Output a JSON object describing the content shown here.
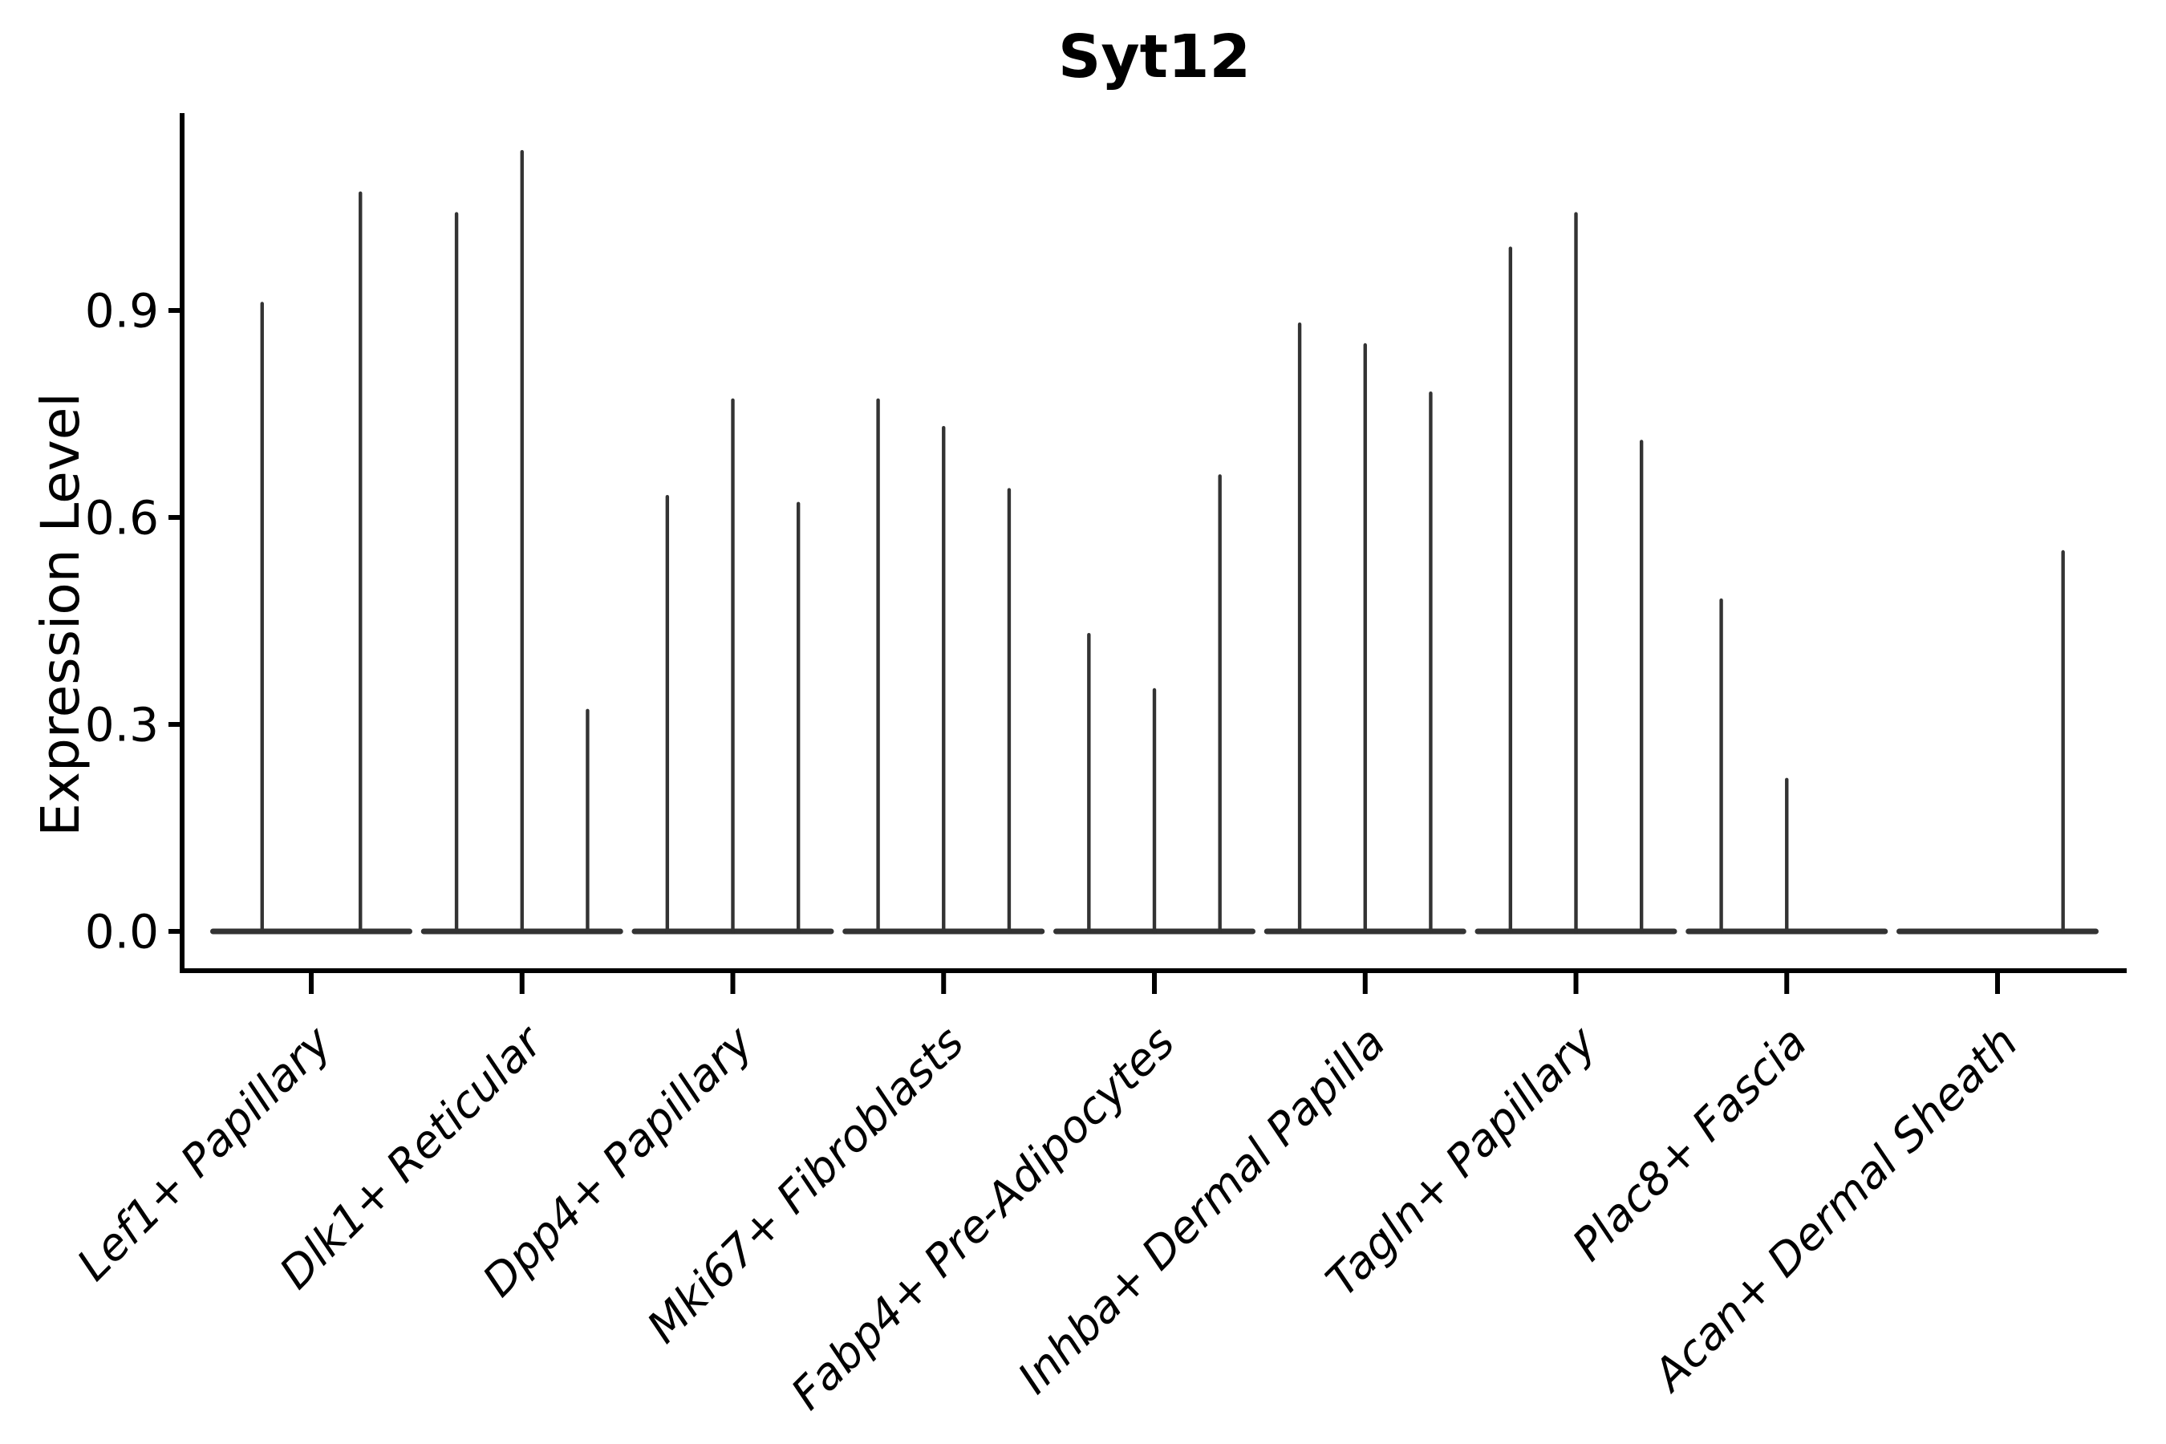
{
  "figure": {
    "background": "#ffffff"
  },
  "chart_data": {
    "type": "violin",
    "title": "Syt12",
    "xlabel": "",
    "ylabel": "Expression Level",
    "ylim": [
      -0.06,
      1.19
    ],
    "yticks": [
      0,
      0.3,
      0.6,
      0.9
    ],
    "ytick_labels": [
      "0.0",
      "0.3",
      "0.6",
      "0.9"
    ],
    "grid": false,
    "legend_position": "none",
    "x_tick_label_rotation_deg": 45,
    "x_tick_label_style": "italic",
    "categories": [
      "Lef1+ Papillary",
      "Dlk1+ Reticular",
      "Dpp4+ Papillary",
      "Mki67+ Fibroblasts",
      "Fabp4+ Pre-Adipocytes",
      "Inhba+ Dermal Papilla",
      "Tagln+ Papillary",
      "Plac8+ Fascia",
      "Acan+ Dermal Sheath"
    ],
    "series": [
      {
        "category": "Lef1+ Papillary",
        "spike_maxima": [
          0.91,
          1.07
        ]
      },
      {
        "category": "Dlk1+ Reticular",
        "spike_maxima": [
          1.04,
          1.13,
          0.32
        ]
      },
      {
        "category": "Dpp4+ Papillary",
        "spike_maxima": [
          0.63,
          0.77,
          0.62
        ]
      },
      {
        "category": "Mki67+ Fibroblasts",
        "spike_maxima": [
          0.77,
          0.73,
          0.64
        ]
      },
      {
        "category": "Fabp4+ Pre-Adipocytes",
        "spike_maxima": [
          0.43,
          0.35,
          0.66
        ]
      },
      {
        "category": "Inhba+ Dermal Papilla",
        "spike_maxima": [
          0.88,
          0.85,
          0.78
        ]
      },
      {
        "category": "Tagln+ Papillary",
        "spike_maxima": [
          0.99,
          1.04,
          0.71
        ]
      },
      {
        "category": "Plac8+ Fascia",
        "spike_maxima": [
          0.48,
          0.22,
          null
        ]
      },
      {
        "category": "Acan+ Dermal Sheath",
        "spike_maxima": [
          null,
          null,
          0.55
        ]
      }
    ],
    "colors": {
      "violin_line": "#333333",
      "axis_line": "#000000",
      "text": "#000000",
      "background": "#ffffff"
    }
  }
}
